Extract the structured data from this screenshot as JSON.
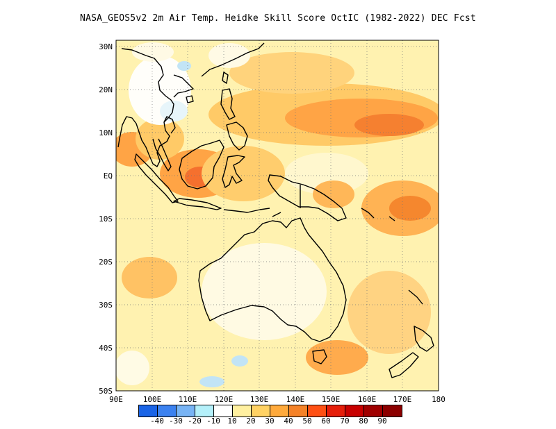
{
  "title": "NASA_GEOS5v2  2m Air Temp. Heidke Skill Score OctIC (1982-2022) DEC Fcst",
  "map": {
    "lat_labels": [
      "30N",
      "20N",
      "10N",
      "EQ",
      "10S",
      "20S",
      "30S",
      "40S",
      "50S"
    ],
    "lat_values": [
      30,
      20,
      10,
      0,
      -10,
      -20,
      -30,
      -40,
      -50
    ],
    "lon_labels": [
      "90E",
      "100E",
      "110E",
      "120E",
      "130E",
      "140E",
      "150E",
      "160E",
      "170E",
      "180"
    ],
    "lon_values": [
      90,
      100,
      110,
      120,
      130,
      140,
      150,
      160,
      170,
      180
    ],
    "lat_range": [
      -50,
      32
    ],
    "lon_range": [
      90,
      180
    ],
    "gridlines": "dotted"
  },
  "colorbar": {
    "labels": [
      "-40",
      "-30",
      "-20",
      "-10",
      "10",
      "20",
      "30",
      "40",
      "50",
      "60",
      "70",
      "80",
      "90"
    ],
    "colors": [
      "#1a64e6",
      "#3c82f0",
      "#78b4f5",
      "#b4f0fa",
      "#ffffff",
      "#fff0a0",
      "#ffd264",
      "#ffaa3c",
      "#f58228",
      "#ff5014",
      "#e61e0a",
      "#c80000",
      "#a00000",
      "#8c0000"
    ]
  }
}
